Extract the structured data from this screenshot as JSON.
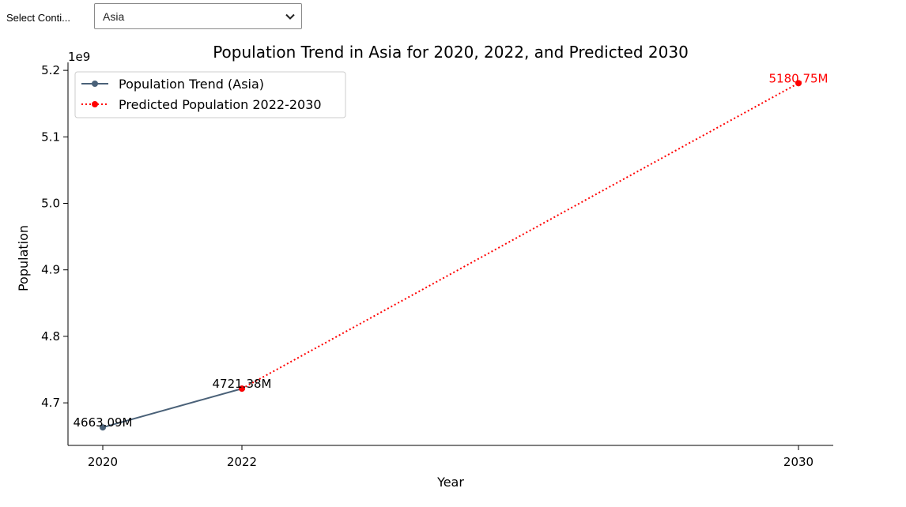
{
  "controls": {
    "continent_label": "Select Conti...",
    "continent_value": "Asia"
  },
  "icons": {
    "dropdown": "chevron-down-icon"
  },
  "chart_data": {
    "type": "line",
    "title": "Population Trend in Asia for 2020, 2022, and Predicted 2030",
    "xlabel": "Year",
    "ylabel": "Population",
    "y_offset_label": "1e9",
    "x_ticks": [
      2020,
      2022,
      2030
    ],
    "y_ticks": [
      "4.7",
      "4.8",
      "4.9",
      "5.0",
      "5.1",
      "5.2"
    ],
    "xlim": [
      2019.5,
      2030.5
    ],
    "ylim": [
      4636000000,
      5212000000
    ],
    "legend_position": "upper-left",
    "series": [
      {
        "name": "Population Trend (Asia)",
        "style": "solid",
        "color": "#4a6178",
        "x": [
          2020,
          2022
        ],
        "y": [
          4663090000,
          4721380000
        ],
        "labels": [
          "4663.09M",
          "4721.38M"
        ],
        "label_colors": [
          "#000000",
          "#000000"
        ]
      },
      {
        "name": "Predicted Population 2022-2030",
        "style": "dotted",
        "color": "#ff0000",
        "x": [
          2022,
          2030
        ],
        "y": [
          4721380000,
          5180750000
        ],
        "labels": [
          "",
          "5180.75M"
        ],
        "label_colors": [
          "#000000",
          "#ff0000"
        ]
      }
    ]
  }
}
